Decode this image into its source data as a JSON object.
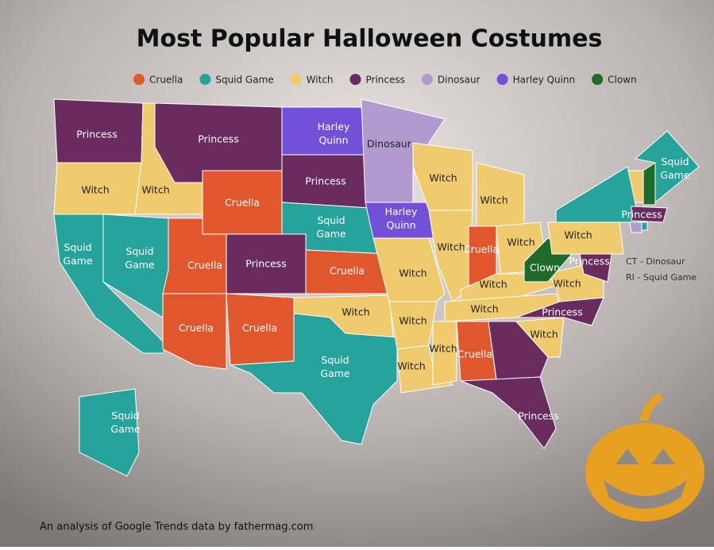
{
  "title": "Most Popular Halloween Costumes",
  "legend": [
    {
      "name": "Cruella",
      "color": "#e0572e"
    },
    {
      "name": "Squid Game",
      "color": "#26a39b"
    },
    {
      "name": "Witch",
      "color": "#efcb6e"
    },
    {
      "name": "Princess",
      "color": "#6a2c5e"
    },
    {
      "name": "Dinosaur",
      "color": "#b09ad0"
    },
    {
      "name": "Harley Quinn",
      "color": "#7350d8"
    },
    {
      "name": "Clown",
      "color": "#1f6b2b"
    }
  ],
  "state_labels": [
    "Princess",
    "Witch",
    "Squid Game",
    "Squid Game",
    "Witch",
    "Princess",
    "Cruella",
    "Cruella",
    "Princess",
    "Cruella",
    "Cruella",
    "Harley Quinn",
    "Princess",
    "Squid Game",
    "Cruella",
    "Witch",
    "Squid Game",
    "Dinosaur",
    "Harley Quinn",
    "Witch",
    "Witch",
    "Witch",
    "Witch",
    "Witch",
    "Witch",
    "Cruella",
    "Witch",
    "Witch",
    "Witch",
    "Witch",
    "Cruella",
    "Princess",
    "Witch",
    "Princess",
    "Witch",
    "Clown",
    "Witch",
    "Squid Game",
    "Princess",
    "Princess",
    "Squid Game",
    "Squid Game"
  ],
  "annotations": [
    "CT - Dinosaur",
    "RI - Squid Game"
  ],
  "source": "An analysis of Google Trends data by fathermag.com"
}
